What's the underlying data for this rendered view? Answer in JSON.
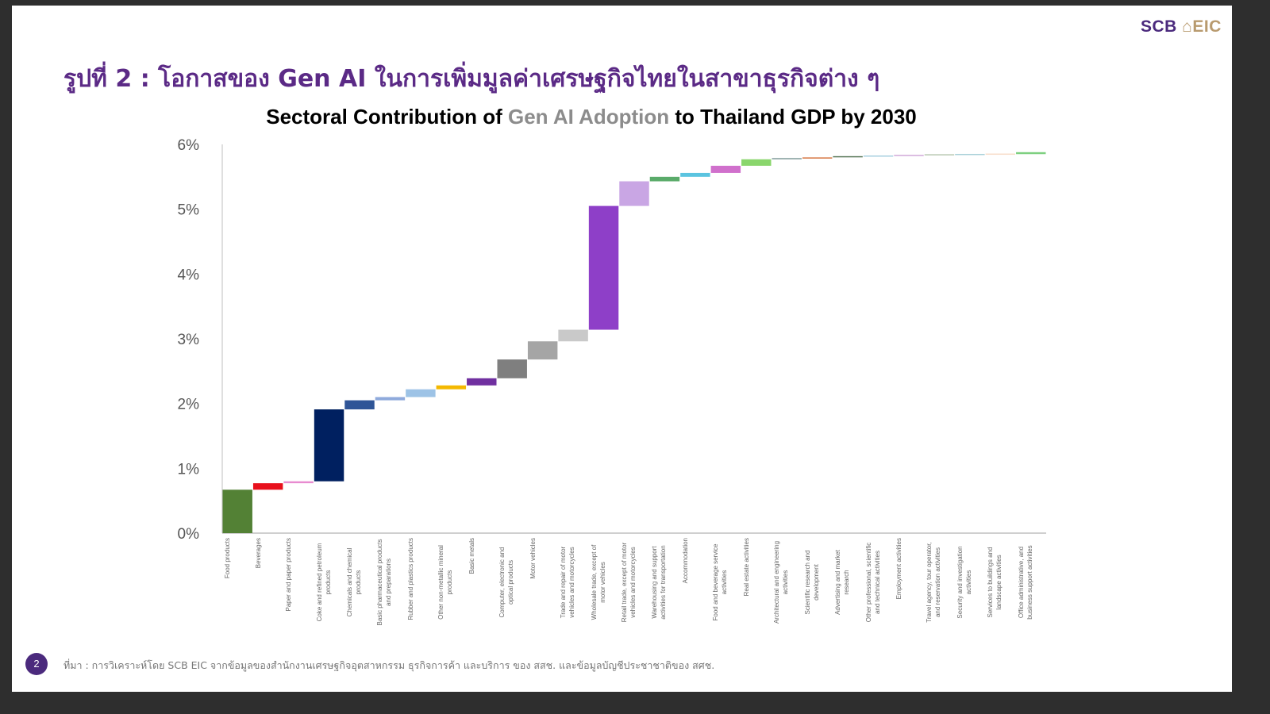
{
  "logo": {
    "left": "SCB",
    "right": "EIC"
  },
  "slide_title": "รูปที่ 2 : โอกาสของ Gen AI ในการเพิ่มมูลค่าเศรษฐกิจไทยในสาขาธุรกิจต่าง ๆ",
  "page_number": "2",
  "source": "ที่มา : การวิเคราะห์โดย SCB EIC จากข้อมูลของสำนักงานเศรษฐกิจอุตสาหกรรม ธุรกิจการค้า และบริการ ของ สสช. และข้อมูลบัญชีประชาชาติของ สศช.",
  "chart_data": {
    "type": "waterfall",
    "title_parts": {
      "pre": "Sectoral Contribution of ",
      "highlight": "Gen AI Adoption",
      "post": " to Thailand GDP by 2030"
    },
    "ylabel": "",
    "ylim": [
      0,
      6
    ],
    "yticks": [
      "0%",
      "1%",
      "2%",
      "3%",
      "4%",
      "5%",
      "6%"
    ],
    "grid": false,
    "categories": [
      "Food products",
      "Beverages",
      "Paper and paper products",
      "Coke and refined petroleum products",
      "Chemicals and chemical products",
      "Basic pharmaceutical products and preparations",
      "Rubber and plastics products",
      "Other non-metallic mineral products",
      "Basic metals",
      "Computer, electronic and optical products",
      "Motor vehicles",
      "Trade and repair of motor vehicles and motorcycles",
      "Wholesale trade, except of motor vehicles",
      "Retail trade, except of motor vehicles and motorcycles",
      "Warehousing and support activities for transportation",
      "Accommodation",
      "Food and beverage service activities",
      "Real estate activities",
      "Architectural and engineering activities",
      "Scientific research and development",
      "Advertising and market research",
      "Other professional, scientific and technical activities",
      "Employment activities",
      "Travel agency, tour operator, and reservation activities",
      "Security and investigation activities",
      "Services to buildings and landscape activities",
      "Office administrative, and business support activities"
    ],
    "values": [
      0.67,
      0.1,
      0.03,
      1.11,
      0.14,
      0.05,
      0.12,
      0.06,
      0.11,
      0.29,
      0.28,
      0.18,
      1.91,
      0.38,
      0.07,
      0.06,
      0.11,
      0.1,
      0.01,
      0.02,
      0.01,
      0.01,
      0.01,
      0.005,
      0.005,
      0.01,
      0.03
    ],
    "colors": [
      "#538135",
      "#e8101c",
      "#e88bd0",
      "#002060",
      "#2f5597",
      "#8faadc",
      "#9dc3e6",
      "#f4b800",
      "#7030a0",
      "#7f7f7f",
      "#a5a5a5",
      "#c9c9c9",
      "#8e3fc8",
      "#c9a6e4",
      "#5aab6a",
      "#5bc4e0",
      "#d070cc",
      "#8ad66c",
      "#7f9a98",
      "#d98050",
      "#5a7a5a",
      "#a8d0e0",
      "#d0a8d8",
      "#b8c8b0",
      "#a8d0d8",
      "#f8dcc8",
      "#7ed080"
    ]
  }
}
